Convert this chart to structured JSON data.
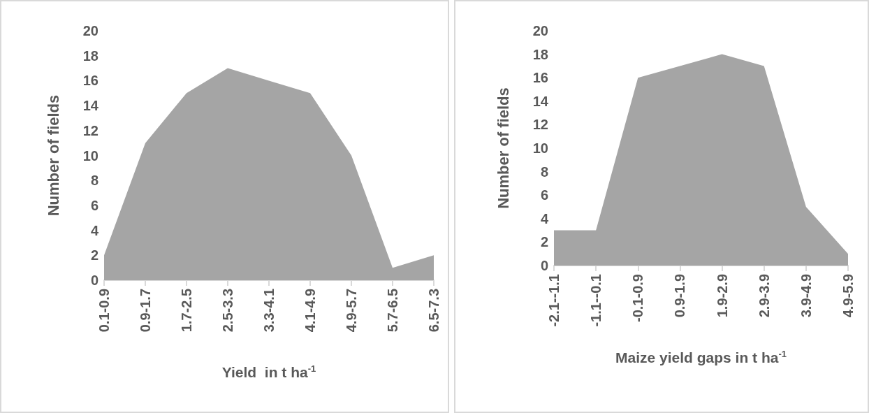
{
  "chart_data": [
    {
      "type": "area",
      "categories": [
        "0.1-0.9",
        "0.9-1.7",
        "1.7-2.5",
        "2.5-3.3",
        "3.3-4.1",
        "4.1-4.9",
        "4.9-5.7",
        "5.7-6.5",
        "6.5-7.3"
      ],
      "values": [
        2,
        11,
        15,
        17,
        16,
        15,
        10,
        1,
        2
      ],
      "color": "#a5a5a5",
      "xlabel": "Yield  in t ha$^{-1}$",
      "ylabel": "Number of fields",
      "ylim": [
        0,
        20
      ],
      "yticks": [
        0,
        2,
        4,
        6,
        8,
        10,
        12,
        14,
        16,
        18,
        20
      ],
      "grid": false
    },
    {
      "type": "area",
      "categories": [
        "-2.1--1.1",
        "-1.1--0.1",
        "-0.1-0.9",
        "0.9-1.9",
        "1.9-2.9",
        "2.9-3.9",
        "3.9-4.9",
        "4.9-5.9"
      ],
      "values": [
        3,
        3,
        16,
        null,
        18,
        17,
        5,
        1
      ],
      "color": "#a5a5a5",
      "xlabel": "Maize yield gaps in t ha$^{-1}$",
      "ylabel": "Number of fields",
      "ylim": [
        0,
        20
      ],
      "yticks": [
        0,
        2,
        4,
        6,
        8,
        10,
        12,
        14,
        16,
        18,
        20
      ],
      "grid": false
    }
  ]
}
